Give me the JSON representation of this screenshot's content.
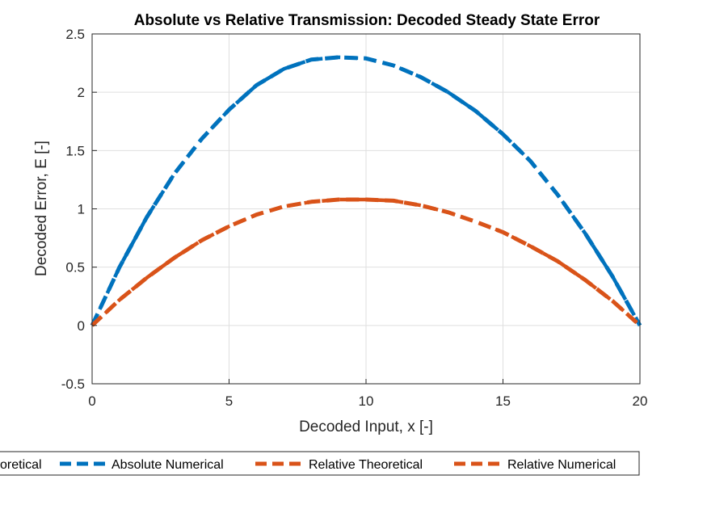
{
  "chart_data": {
    "type": "line",
    "title": "Absolute vs Relative Transmission: Decoded Steady State Error",
    "xlabel": "Decoded Input, x [-]",
    "ylabel": "Decoded Error, E [-]",
    "xlim": [
      0,
      20
    ],
    "ylim": [
      -0.5,
      2.5
    ],
    "xticks": [
      0,
      5,
      10,
      15,
      20
    ],
    "yticks": [
      -0.5,
      0,
      0.5,
      1,
      1.5,
      2,
      2.5
    ],
    "xtick_labels": [
      "0",
      "5",
      "10",
      "15",
      "20"
    ],
    "ytick_labels": [
      "-0.5",
      "0",
      "0.5",
      "1",
      "1.5",
      "2",
      "2.5"
    ],
    "grid": true,
    "legend_position": "bottom-outside",
    "legend_visible_text": [
      "oretical",
      "Absolute Numerical",
      "Relative Theoretical",
      "Relative Numerical"
    ],
    "x": [
      0,
      1,
      2,
      3,
      4,
      5,
      6,
      7,
      8,
      9,
      10,
      11,
      12,
      13,
      14,
      15,
      16,
      17,
      18,
      19,
      20
    ],
    "series": [
      {
        "name": "Absolute Theoretical",
        "color": "#0072BD",
        "values": [
          0,
          0.5,
          0.93,
          1.3,
          1.6,
          1.85,
          2.06,
          2.2,
          2.28,
          2.3,
          2.29,
          2.23,
          2.13,
          2.0,
          1.84,
          1.64,
          1.41,
          1.12,
          0.79,
          0.42,
          0
        ]
      },
      {
        "name": "Absolute Numerical",
        "color": "#0072BD",
        "values": [
          0,
          0.5,
          0.93,
          1.3,
          1.6,
          1.85,
          2.06,
          2.2,
          2.28,
          2.3,
          2.29,
          2.23,
          2.13,
          2.0,
          1.84,
          1.64,
          1.41,
          1.12,
          0.79,
          0.42,
          0
        ]
      },
      {
        "name": "Relative Theoretical",
        "color": "#D95319",
        "values": [
          0,
          0.22,
          0.41,
          0.58,
          0.73,
          0.85,
          0.95,
          1.02,
          1.06,
          1.08,
          1.08,
          1.07,
          1.03,
          0.97,
          0.89,
          0.8,
          0.68,
          0.55,
          0.39,
          0.21,
          0
        ]
      },
      {
        "name": "Relative Numerical",
        "color": "#D95319",
        "values": [
          0,
          0.22,
          0.41,
          0.58,
          0.73,
          0.85,
          0.95,
          1.02,
          1.06,
          1.08,
          1.08,
          1.07,
          1.03,
          0.97,
          0.89,
          0.8,
          0.68,
          0.55,
          0.39,
          0.21,
          0
        ]
      }
    ]
  }
}
